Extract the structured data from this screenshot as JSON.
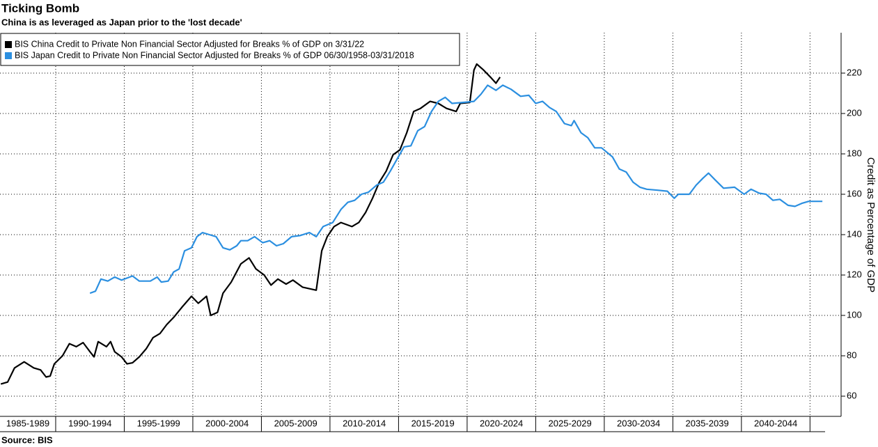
{
  "chart_data": {
    "type": "line",
    "title": "Ticking Bomb",
    "subtitle": "China is as leveraged as Japan prior to the 'lost decade'",
    "ylabel": "Credit as Percentage of GDP",
    "source": "Source: BIS",
    "xlim": [
      1985.94,
      2046.1
    ],
    "xticks": [
      {
        "value": 1987.5,
        "label": "1985-1989"
      },
      {
        "value": 1992.5,
        "label": "1990-1994"
      },
      {
        "value": 1997.5,
        "label": "1995-1999"
      },
      {
        "value": 2002.5,
        "label": "2000-2004"
      },
      {
        "value": 2007.5,
        "label": "2005-2009"
      },
      {
        "value": 2012.5,
        "label": "2010-2014"
      },
      {
        "value": 2017.5,
        "label": "2015-2019"
      },
      {
        "value": 2022.5,
        "label": "2020-2024"
      },
      {
        "value": 2027.5,
        "label": "2025-2029"
      },
      {
        "value": 2032.5,
        "label": "2030-2034"
      },
      {
        "value": 2037.5,
        "label": "2035-2039"
      },
      {
        "value": 2042.5,
        "label": "2040-2044"
      }
    ],
    "ylim": [
      50,
      240
    ],
    "yticks": [
      60,
      80,
      100,
      120,
      140,
      160,
      180,
      200,
      220
    ],
    "grid": true,
    "legend": "top-left",
    "series": [
      {
        "name": "BIS China Credit to Private Non Financial Sector Adjusted for Breaks % of GDP  on 3/31/22",
        "color": "#000000",
        "x": [
          1986.0,
          1986.5,
          1987.0,
          1987.7,
          1988.4,
          1988.9,
          1989.3,
          1989.6,
          1989.9,
          1990.5,
          1991.0,
          1991.5,
          1992.0,
          1992.5,
          1992.8,
          1993.1,
          1993.7,
          1994.0,
          1994.3,
          1994.8,
          1995.2,
          1995.6,
          1996.1,
          1996.6,
          1997.1,
          1997.6,
          1998.1,
          1998.6,
          1999.2,
          1999.9,
          2000.4,
          2001.0,
          2001.3,
          2001.8,
          2002.2,
          2002.8,
          2003.5,
          2004.1,
          2004.6,
          2005.2,
          2005.7,
          2006.2,
          2006.8,
          2007.3,
          2008.0,
          2009.0,
          2009.4,
          2009.8,
          2010.3,
          2010.8,
          2011.6,
          2012.1,
          2012.6,
          2013.1,
          2013.6,
          2014.1,
          2014.6,
          2015.1,
          2015.6,
          2016.1,
          2016.6,
          2017.3,
          2017.9,
          2018.5,
          2019.2,
          2019.5,
          2020.2,
          2020.5,
          2020.7,
          2021.2,
          2021.7,
          2022.1,
          2022.4
        ],
        "values": [
          66,
          67,
          74,
          77,
          74,
          73,
          69.5,
          70,
          76,
          80,
          86,
          84.5,
          86.5,
          82,
          79.5,
          87,
          84.5,
          87,
          82,
          79.5,
          76,
          76.5,
          79.5,
          83.5,
          89,
          91,
          95.5,
          99,
          104,
          109.5,
          106,
          109.5,
          100,
          101.5,
          111,
          116.5,
          125.5,
          128.5,
          123,
          120,
          115,
          118,
          115.5,
          117.5,
          114,
          112.5,
          132,
          139,
          144,
          146,
          144,
          146,
          151,
          158,
          166,
          171.5,
          179.5,
          182,
          190.5,
          201,
          202.5,
          206,
          205,
          202.5,
          201,
          205,
          205.5,
          221.5,
          224.5,
          221.5,
          218,
          215,
          218
        ]
      },
      {
        "name": "BIS Japan Credit to Private Non Financial Sector Adjusted for Breaks % of GDP 06/30/1958-03/31/2018",
        "color": "#2b8fe0",
        "x": [
          1992.5,
          1992.9,
          1993.3,
          1993.8,
          1994.3,
          1994.8,
          1995.6,
          1996.1,
          1996.9,
          1997.4,
          1997.7,
          1998.2,
          1998.6,
          1999.0,
          1999.4,
          1999.9,
          2000.3,
          2000.7,
          2001.2,
          2001.7,
          2002.2,
          2002.7,
          2003.2,
          2003.5,
          2004.0,
          2004.5,
          2005.1,
          2005.6,
          2006.1,
          2006.6,
          2007.2,
          2007.8,
          2008.5,
          2009.0,
          2009.5,
          2010.2,
          2010.8,
          2011.3,
          2011.8,
          2012.3,
          2012.8,
          2013.4,
          2013.9,
          2014.4,
          2014.9,
          2015.4,
          2015.9,
          2016.4,
          2016.9,
          2017.4,
          2017.9,
          2018.4,
          2018.9,
          2019.7,
          2020.5,
          2021.0,
          2021.5,
          2022.1,
          2022.6,
          2023.2,
          2023.9,
          2024.5,
          2025.0,
          2025.5,
          2026.0,
          2026.5,
          2027.1,
          2027.6,
          2027.8,
          2028.3,
          2028.8,
          2029.3,
          2029.8,
          2030.6,
          2031.1,
          2031.6,
          2032.1,
          2032.6,
          2033.1,
          2033.9,
          2034.6,
          2035.1,
          2035.4,
          2036.2,
          2036.7,
          2037.2,
          2037.6,
          2038.1,
          2038.7,
          2039.5,
          2040.2,
          2040.7,
          2041.3,
          2041.8,
          2042.3,
          2042.8,
          2043.4,
          2043.9,
          2044.4,
          2044.9,
          2045.4,
          2045.9
        ],
        "values": [
          111,
          112,
          118,
          117,
          119,
          117.5,
          119.5,
          117,
          117,
          119,
          116.5,
          117,
          121.5,
          123,
          132,
          133.5,
          139,
          141,
          140,
          139,
          133.5,
          132.5,
          134.5,
          137,
          137,
          139,
          136,
          137,
          134.5,
          135.5,
          139,
          139.5,
          141,
          139,
          144,
          146,
          152.5,
          156,
          157,
          160,
          161,
          164.5,
          166,
          171.5,
          177.5,
          183.5,
          184,
          191.5,
          193.5,
          201,
          206,
          208,
          205,
          205.5,
          206,
          209.5,
          214,
          211.5,
          214,
          212,
          208.5,
          209,
          205,
          206,
          203,
          201,
          195,
          194,
          196.5,
          190.5,
          188,
          183,
          183,
          178.5,
          172.5,
          171,
          166,
          163.5,
          162.5,
          162,
          161.5,
          158,
          160,
          160,
          164.5,
          168,
          170.5,
          167,
          163,
          163.5,
          160,
          162.5,
          160.5,
          160,
          157,
          157.5,
          154.5,
          154,
          155.5,
          156.5,
          156.5,
          156.5
        ]
      }
    ]
  }
}
